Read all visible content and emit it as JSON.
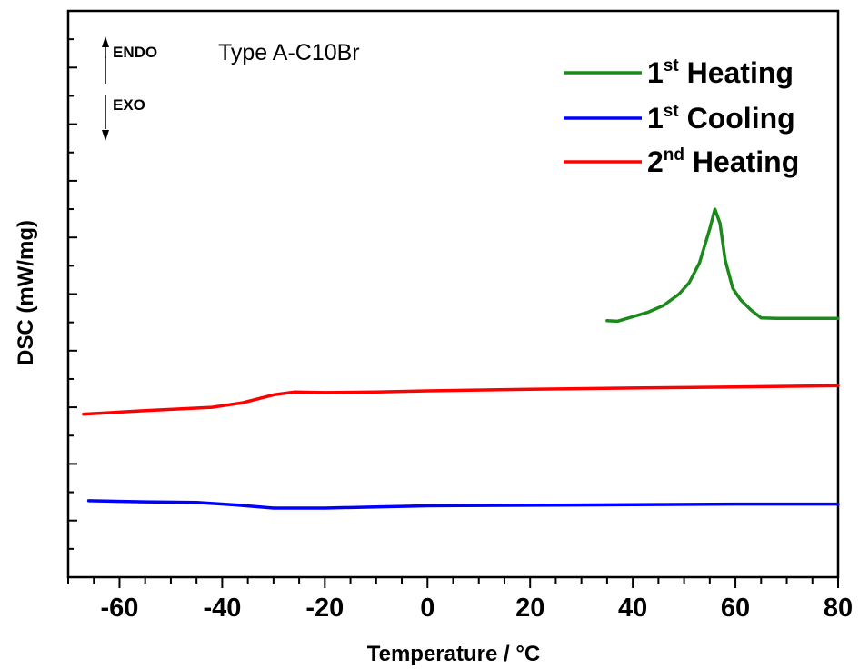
{
  "chart_data": {
    "type": "line",
    "title": "",
    "xlabel": "Temperature / °C",
    "ylabel": "DSC (mW/mg)",
    "xlim": [
      -70,
      80
    ],
    "xticks": [
      -60,
      -40,
      -20,
      0,
      20,
      40,
      60,
      80
    ],
    "ylim": [
      0,
      10
    ],
    "y_tick_labels_shown": false,
    "grid": false,
    "legend_position": "top-right",
    "annotations": {
      "endo": "ENDO",
      "exo": "EXO",
      "sample": "Type A-C10Br"
    },
    "series": [
      {
        "name": "1st Heating",
        "legend_main": "1",
        "legend_sup": "st",
        "legend_rest": " Heating",
        "color": "#1a8a1a",
        "points": [
          [
            35,
            4.53
          ],
          [
            37,
            4.52
          ],
          [
            40,
            4.6
          ],
          [
            43,
            4.68
          ],
          [
            46,
            4.8
          ],
          [
            49,
            5.0
          ],
          [
            51,
            5.2
          ],
          [
            53,
            5.55
          ],
          [
            55,
            6.15
          ],
          [
            56,
            6.5
          ],
          [
            57,
            6.25
          ],
          [
            58,
            5.6
          ],
          [
            59.5,
            5.1
          ],
          [
            61,
            4.9
          ],
          [
            63,
            4.72
          ],
          [
            65,
            4.58
          ],
          [
            68,
            4.57
          ],
          [
            75,
            4.57
          ],
          [
            80,
            4.57
          ]
        ]
      },
      {
        "name": "1st Cooling",
        "legend_main": "1",
        "legend_sup": "st",
        "legend_rest": " Cooling",
        "color": "#0000ff",
        "points": [
          [
            -66,
            1.35
          ],
          [
            -55,
            1.33
          ],
          [
            -45,
            1.32
          ],
          [
            -38,
            1.28
          ],
          [
            -30,
            1.22
          ],
          [
            -20,
            1.22
          ],
          [
            -10,
            1.24
          ],
          [
            0,
            1.26
          ],
          [
            20,
            1.27
          ],
          [
            40,
            1.28
          ],
          [
            60,
            1.29
          ],
          [
            80,
            1.29
          ]
        ]
      },
      {
        "name": "2nd Heating",
        "legend_main": "2",
        "legend_sup": "nd",
        "legend_rest": " Heating",
        "color": "#ff0000",
        "points": [
          [
            -67,
            2.88
          ],
          [
            -55,
            2.94
          ],
          [
            -42,
            3.0
          ],
          [
            -36,
            3.08
          ],
          [
            -30,
            3.22
          ],
          [
            -26,
            3.27
          ],
          [
            -20,
            3.26
          ],
          [
            -10,
            3.27
          ],
          [
            0,
            3.29
          ],
          [
            20,
            3.32
          ],
          [
            40,
            3.34
          ],
          [
            60,
            3.36
          ],
          [
            80,
            3.38
          ]
        ]
      }
    ]
  }
}
